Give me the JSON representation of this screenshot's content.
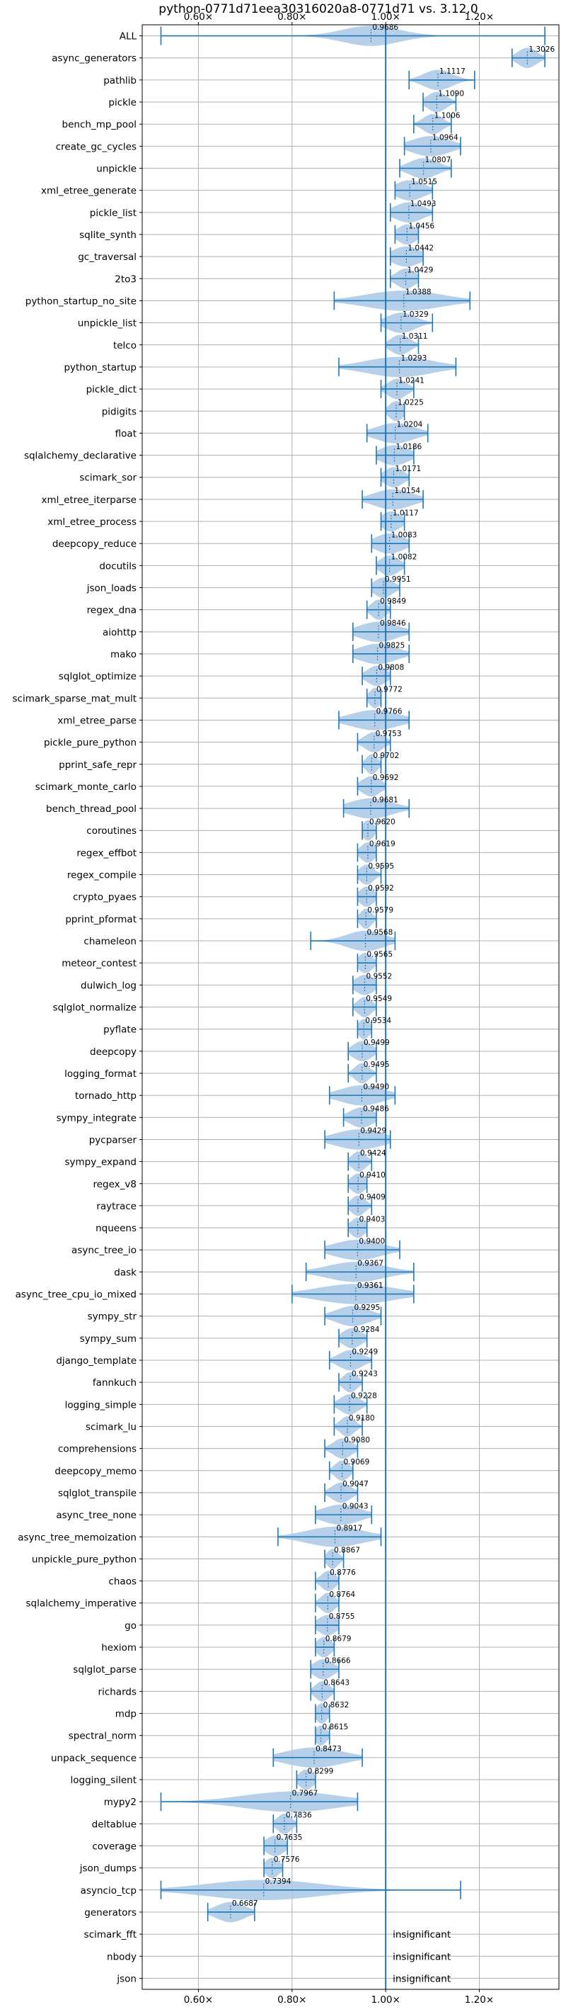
{
  "chart_data": {
    "type": "violin",
    "title": "python-0771d71eea30316020a8-0771d71 vs. 3.12.0",
    "xlabel": "",
    "ylabel": "",
    "xlim": [
      0.48,
      1.37
    ],
    "x_ticks": [
      0.6,
      0.8,
      1.0,
      1.2
    ],
    "x_tick_labels": [
      "0.60×",
      "0.80×",
      "1.00×",
      "1.20×"
    ],
    "reference_line": 1.0,
    "grid": true,
    "colors": {
      "violin": "#a9c8e6",
      "line": "#1f77b4",
      "grid": "#b0b0b0"
    },
    "insignificant_label": "insignificant",
    "benchmarks": [
      {
        "name": "ALL",
        "value": 0.9686,
        "value_label": "0.9686",
        "min": 0.52,
        "max": 1.34,
        "spread": 0.06
      },
      {
        "name": "async_generators",
        "value": 1.3026,
        "value_label": "1.3026",
        "min": 1.27,
        "max": 1.34,
        "spread": 0.02
      },
      {
        "name": "pathlib",
        "value": 1.1117,
        "value_label": "1.1117",
        "min": 1.05,
        "max": 1.19,
        "spread": 0.03
      },
      {
        "name": "pickle",
        "value": 1.109,
        "value_label": "1.1090",
        "min": 1.08,
        "max": 1.15,
        "spread": 0.02
      },
      {
        "name": "bench_mp_pool",
        "value": 1.1006,
        "value_label": "1.1006",
        "min": 1.06,
        "max": 1.14,
        "spread": 0.02
      },
      {
        "name": "create_gc_cycles",
        "value": 1.0964,
        "value_label": "1.0964",
        "min": 1.04,
        "max": 1.16,
        "spread": 0.04
      },
      {
        "name": "unpickle",
        "value": 1.0807,
        "value_label": "1.0807",
        "min": 1.03,
        "max": 1.14,
        "spread": 0.03
      },
      {
        "name": "xml_etree_generate",
        "value": 1.0515,
        "value_label": "1.0515",
        "min": 1.02,
        "max": 1.1,
        "spread": 0.03
      },
      {
        "name": "pickle_list",
        "value": 1.0493,
        "value_label": "1.0493",
        "min": 1.01,
        "max": 1.1,
        "spread": 0.03
      },
      {
        "name": "sqlite_synth",
        "value": 1.0456,
        "value_label": "1.0456",
        "min": 1.02,
        "max": 1.07,
        "spread": 0.02
      },
      {
        "name": "gc_traversal",
        "value": 1.0442,
        "value_label": "1.0442",
        "min": 1.01,
        "max": 1.08,
        "spread": 0.03
      },
      {
        "name": "2to3",
        "value": 1.0429,
        "value_label": "1.0429",
        "min": 1.01,
        "max": 1.07,
        "spread": 0.02
      },
      {
        "name": "python_startup_no_site",
        "value": 1.0388,
        "value_label": "1.0388",
        "min": 0.89,
        "max": 1.18,
        "spread": 0.08
      },
      {
        "name": "unpickle_list",
        "value": 1.0329,
        "value_label": "1.0329",
        "min": 0.99,
        "max": 1.1,
        "spread": 0.03
      },
      {
        "name": "telco",
        "value": 1.0311,
        "value_label": "1.0311",
        "min": 1.0,
        "max": 1.07,
        "spread": 0.02
      },
      {
        "name": "python_startup",
        "value": 1.0293,
        "value_label": "1.0293",
        "min": 0.9,
        "max": 1.15,
        "spread": 0.07
      },
      {
        "name": "pickle_dict",
        "value": 1.0241,
        "value_label": "1.0241",
        "min": 0.99,
        "max": 1.06,
        "spread": 0.02
      },
      {
        "name": "pidigits",
        "value": 1.0225,
        "value_label": "1.0225",
        "min": 1.0,
        "max": 1.04,
        "spread": 0.015
      },
      {
        "name": "float",
        "value": 1.0204,
        "value_label": "1.0204",
        "min": 0.96,
        "max": 1.09,
        "spread": 0.04
      },
      {
        "name": "sqlalchemy_declarative",
        "value": 1.0186,
        "value_label": "1.0186",
        "min": 0.98,
        "max": 1.06,
        "spread": 0.03
      },
      {
        "name": "scimark_sor",
        "value": 1.0171,
        "value_label": "1.0171",
        "min": 0.99,
        "max": 1.05,
        "spread": 0.02
      },
      {
        "name": "xml_etree_iterparse",
        "value": 1.0154,
        "value_label": "1.0154",
        "min": 0.95,
        "max": 1.08,
        "spread": 0.04
      },
      {
        "name": "xml_etree_process",
        "value": 1.0117,
        "value_label": "1.0117",
        "min": 0.99,
        "max": 1.04,
        "spread": 0.02
      },
      {
        "name": "deepcopy_reduce",
        "value": 1.0083,
        "value_label": "1.0083",
        "min": 0.97,
        "max": 1.05,
        "spread": 0.03
      },
      {
        "name": "docutils",
        "value": 1.0082,
        "value_label": "1.0082",
        "min": 0.98,
        "max": 1.04,
        "spread": 0.02
      },
      {
        "name": "json_loads",
        "value": 0.9951,
        "value_label": "0.9951",
        "min": 0.97,
        "max": 1.03,
        "spread": 0.02
      },
      {
        "name": "regex_dna",
        "value": 0.9849,
        "value_label": "0.9849",
        "min": 0.96,
        "max": 1.01,
        "spread": 0.015
      },
      {
        "name": "aiohttp",
        "value": 0.9846,
        "value_label": "0.9846",
        "min": 0.93,
        "max": 1.05,
        "spread": 0.04
      },
      {
        "name": "mako",
        "value": 0.9825,
        "value_label": "0.9825",
        "min": 0.93,
        "max": 1.05,
        "spread": 0.04
      },
      {
        "name": "sqlglot_optimize",
        "value": 0.9808,
        "value_label": "0.9808",
        "min": 0.95,
        "max": 1.01,
        "spread": 0.02
      },
      {
        "name": "scimark_sparse_mat_mult",
        "value": 0.9772,
        "value_label": "0.9772",
        "min": 0.96,
        "max": 0.99,
        "spread": 0.012
      },
      {
        "name": "xml_etree_parse",
        "value": 0.9766,
        "value_label": "0.9766",
        "min": 0.9,
        "max": 1.05,
        "spread": 0.05
      },
      {
        "name": "pickle_pure_python",
        "value": 0.9753,
        "value_label": "0.9753",
        "min": 0.94,
        "max": 1.01,
        "spread": 0.02
      },
      {
        "name": "pprint_safe_repr",
        "value": 0.9702,
        "value_label": "0.9702",
        "min": 0.95,
        "max": 0.99,
        "spread": 0.012
      },
      {
        "name": "scimark_monte_carlo",
        "value": 0.9692,
        "value_label": "0.9692",
        "min": 0.94,
        "max": 1.0,
        "spread": 0.02
      },
      {
        "name": "bench_thread_pool",
        "value": 0.9681,
        "value_label": "0.9681",
        "min": 0.91,
        "max": 1.05,
        "spread": 0.045
      },
      {
        "name": "coroutines",
        "value": 0.962,
        "value_label": "0.9620",
        "min": 0.95,
        "max": 0.98,
        "spread": 0.012
      },
      {
        "name": "regex_effbot",
        "value": 0.9619,
        "value_label": "0.9619",
        "min": 0.94,
        "max": 0.98,
        "spread": 0.015
      },
      {
        "name": "regex_compile",
        "value": 0.9595,
        "value_label": "0.9595",
        "min": 0.94,
        "max": 0.99,
        "spread": 0.015
      },
      {
        "name": "crypto_pyaes",
        "value": 0.9592,
        "value_label": "0.9592",
        "min": 0.94,
        "max": 0.98,
        "spread": 0.015
      },
      {
        "name": "pprint_pformat",
        "value": 0.9579,
        "value_label": "0.9579",
        "min": 0.94,
        "max": 0.98,
        "spread": 0.012
      },
      {
        "name": "chameleon",
        "value": 0.9568,
        "value_label": "0.9568",
        "min": 0.84,
        "max": 1.02,
        "spread": 0.04
      },
      {
        "name": "meteor_contest",
        "value": 0.9565,
        "value_label": "0.9565",
        "min": 0.94,
        "max": 0.98,
        "spread": 0.015
      },
      {
        "name": "dulwich_log",
        "value": 0.9552,
        "value_label": "0.9552",
        "min": 0.93,
        "max": 0.98,
        "spread": 0.02
      },
      {
        "name": "sqlglot_normalize",
        "value": 0.9549,
        "value_label": "0.9549",
        "min": 0.93,
        "max": 0.98,
        "spread": 0.015
      },
      {
        "name": "pyflate",
        "value": 0.9534,
        "value_label": "0.9534",
        "min": 0.94,
        "max": 0.97,
        "spread": 0.012
      },
      {
        "name": "deepcopy",
        "value": 0.9499,
        "value_label": "0.9499",
        "min": 0.92,
        "max": 0.98,
        "spread": 0.02
      },
      {
        "name": "logging_format",
        "value": 0.9495,
        "value_label": "0.9495",
        "min": 0.92,
        "max": 0.98,
        "spread": 0.015
      },
      {
        "name": "tornado_http",
        "value": 0.949,
        "value_label": "0.9490",
        "min": 0.88,
        "max": 1.02,
        "spread": 0.045
      },
      {
        "name": "sympy_integrate",
        "value": 0.9486,
        "value_label": "0.9486",
        "min": 0.91,
        "max": 0.98,
        "spread": 0.025
      },
      {
        "name": "pycparser",
        "value": 0.9429,
        "value_label": "0.9429",
        "min": 0.87,
        "max": 1.01,
        "spread": 0.05
      },
      {
        "name": "sympy_expand",
        "value": 0.9424,
        "value_label": "0.9424",
        "min": 0.92,
        "max": 0.97,
        "spread": 0.015
      },
      {
        "name": "regex_v8",
        "value": 0.941,
        "value_label": "0.9410",
        "min": 0.92,
        "max": 0.96,
        "spread": 0.015
      },
      {
        "name": "raytrace",
        "value": 0.9409,
        "value_label": "0.9409",
        "min": 0.92,
        "max": 0.97,
        "spread": 0.015
      },
      {
        "name": "nqueens",
        "value": 0.9403,
        "value_label": "0.9403",
        "min": 0.92,
        "max": 0.96,
        "spread": 0.015
      },
      {
        "name": "async_tree_io",
        "value": 0.94,
        "value_label": "0.9400",
        "min": 0.87,
        "max": 1.03,
        "spread": 0.05
      },
      {
        "name": "dask",
        "value": 0.9367,
        "value_label": "0.9367",
        "min": 0.83,
        "max": 1.06,
        "spread": 0.06
      },
      {
        "name": "async_tree_cpu_io_mixed",
        "value": 0.9361,
        "value_label": "0.9361",
        "min": 0.8,
        "max": 1.06,
        "spread": 0.08
      },
      {
        "name": "sympy_str",
        "value": 0.9295,
        "value_label": "0.9295",
        "min": 0.87,
        "max": 0.99,
        "spread": 0.035
      },
      {
        "name": "sympy_sum",
        "value": 0.9284,
        "value_label": "0.9284",
        "min": 0.9,
        "max": 0.96,
        "spread": 0.02
      },
      {
        "name": "django_template",
        "value": 0.9249,
        "value_label": "0.9249",
        "min": 0.88,
        "max": 0.97,
        "spread": 0.025
      },
      {
        "name": "fannkuch",
        "value": 0.9243,
        "value_label": "0.9243",
        "min": 0.9,
        "max": 0.95,
        "spread": 0.015
      },
      {
        "name": "logging_simple",
        "value": 0.9228,
        "value_label": "0.9228",
        "min": 0.89,
        "max": 0.96,
        "spread": 0.02
      },
      {
        "name": "scimark_lu",
        "value": 0.918,
        "value_label": "0.9180",
        "min": 0.89,
        "max": 0.95,
        "spread": 0.015
      },
      {
        "name": "comprehensions",
        "value": 0.908,
        "value_label": "0.9080",
        "min": 0.87,
        "max": 0.94,
        "spread": 0.02
      },
      {
        "name": "deepcopy_memo",
        "value": 0.9069,
        "value_label": "0.9069",
        "min": 0.88,
        "max": 0.93,
        "spread": 0.015
      },
      {
        "name": "sqlglot_transpile",
        "value": 0.9047,
        "value_label": "0.9047",
        "min": 0.87,
        "max": 0.94,
        "spread": 0.02
      },
      {
        "name": "async_tree_none",
        "value": 0.9043,
        "value_label": "0.9043",
        "min": 0.85,
        "max": 0.97,
        "spread": 0.04
      },
      {
        "name": "async_tree_memoization",
        "value": 0.8917,
        "value_label": "0.8917",
        "min": 0.77,
        "max": 0.99,
        "spread": 0.06
      },
      {
        "name": "unpickle_pure_python",
        "value": 0.8867,
        "value_label": "0.8867",
        "min": 0.87,
        "max": 0.91,
        "spread": 0.012
      },
      {
        "name": "chaos",
        "value": 0.8776,
        "value_label": "0.8776",
        "min": 0.85,
        "max": 0.9,
        "spread": 0.015
      },
      {
        "name": "sqlalchemy_imperative",
        "value": 0.8764,
        "value_label": "0.8764",
        "min": 0.85,
        "max": 0.9,
        "spread": 0.015
      },
      {
        "name": "go",
        "value": 0.8755,
        "value_label": "0.8755",
        "min": 0.85,
        "max": 0.9,
        "spread": 0.02
      },
      {
        "name": "hexiom",
        "value": 0.8679,
        "value_label": "0.8679",
        "min": 0.85,
        "max": 0.89,
        "spread": 0.015
      },
      {
        "name": "sqlglot_parse",
        "value": 0.8666,
        "value_label": "0.8666",
        "min": 0.84,
        "max": 0.9,
        "spread": 0.02
      },
      {
        "name": "richards",
        "value": 0.8643,
        "value_label": "0.8643",
        "min": 0.84,
        "max": 0.89,
        "spread": 0.015
      },
      {
        "name": "mdp",
        "value": 0.8632,
        "value_label": "0.8632",
        "min": 0.85,
        "max": 0.88,
        "spread": 0.012
      },
      {
        "name": "spectral_norm",
        "value": 0.8615,
        "value_label": "0.8615",
        "min": 0.85,
        "max": 0.88,
        "spread": 0.012
      },
      {
        "name": "unpack_sequence",
        "value": 0.8473,
        "value_label": "0.8473",
        "min": 0.76,
        "max": 0.95,
        "spread": 0.06
      },
      {
        "name": "logging_silent",
        "value": 0.8299,
        "value_label": "0.8299",
        "min": 0.81,
        "max": 0.85,
        "spread": 0.015
      },
      {
        "name": "mypy2",
        "value": 0.7967,
        "value_label": "0.7967",
        "min": 0.52,
        "max": 0.94,
        "spread": 0.1
      },
      {
        "name": "deltablue",
        "value": 0.7836,
        "value_label": "0.7836",
        "min": 0.76,
        "max": 0.81,
        "spread": 0.015
      },
      {
        "name": "coverage",
        "value": 0.7635,
        "value_label": "0.7635",
        "min": 0.74,
        "max": 0.79,
        "spread": 0.02
      },
      {
        "name": "json_dumps",
        "value": 0.7576,
        "value_label": "0.7576",
        "min": 0.74,
        "max": 0.78,
        "spread": 0.015
      },
      {
        "name": "asyncio_tcp",
        "value": 0.7394,
        "value_label": "0.7394",
        "min": 0.52,
        "max": 1.16,
        "spread": 0.12
      },
      {
        "name": "generators",
        "value": 0.6687,
        "value_label": "0.6687",
        "min": 0.62,
        "max": 0.72,
        "spread": 0.03
      },
      {
        "name": "scimark_fft",
        "value": null,
        "value_label": "",
        "insignificant": true
      },
      {
        "name": "nbody",
        "value": null,
        "value_label": "",
        "insignificant": true
      },
      {
        "name": "json",
        "value": null,
        "value_label": "",
        "insignificant": true
      }
    ]
  }
}
